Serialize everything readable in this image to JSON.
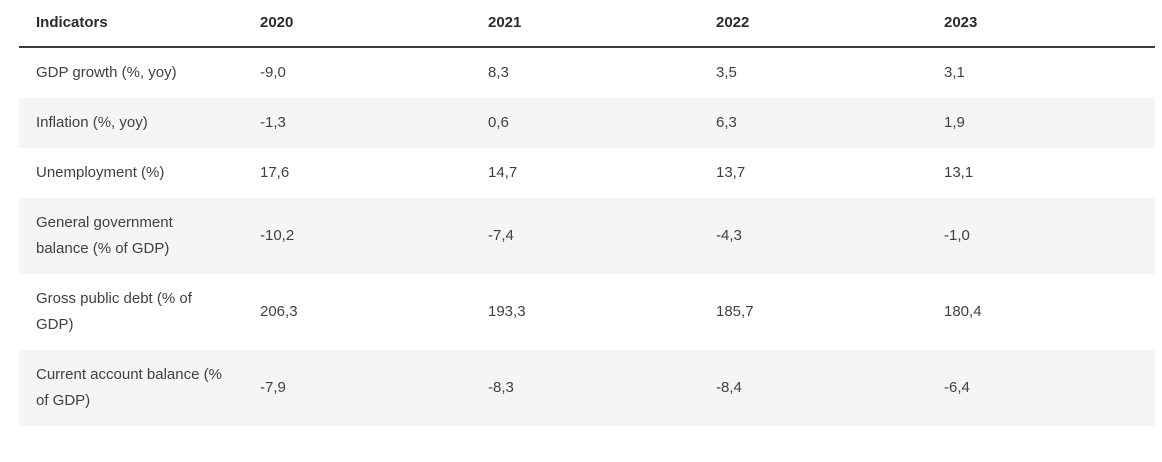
{
  "colors": {
    "page_bg": "#ffffff",
    "stripe_bg": "#f5f5f5",
    "header_border": "#3a3a3a",
    "header_text": "#2b2b2b",
    "text": "#404040"
  },
  "table": {
    "columns": [
      "Indicators",
      "2020",
      "2021",
      "2022",
      "2023"
    ],
    "rows": [
      {
        "indicator": "GDP growth (%, yoy)",
        "values": [
          "-9,0",
          "8,3",
          "3,5",
          "3,1"
        ]
      },
      {
        "indicator": "Inflation (%, yoy)",
        "values": [
          "-1,3",
          "0,6",
          "6,3",
          "1,9"
        ]
      },
      {
        "indicator": "Unemployment (%)",
        "values": [
          "17,6",
          "14,7",
          "13,7",
          "13,1"
        ]
      },
      {
        "indicator": "General government balance (% of GDP)",
        "values": [
          "-10,2",
          "-7,4",
          "-4,3",
          "-1,0"
        ]
      },
      {
        "indicator": "Gross public debt (% of GDP)",
        "values": [
          "206,3",
          "193,3",
          "185,7",
          "180,4"
        ]
      },
      {
        "indicator": "Current account balance (% of GDP)",
        "values": [
          "-7,9",
          "-8,3",
          "-8,4",
          "-6,4"
        ]
      }
    ]
  },
  "chart_data": {
    "type": "table",
    "columns": [
      "Indicators",
      "2020",
      "2021",
      "2022",
      "2023"
    ],
    "rows": [
      [
        "GDP growth (%, yoy)",
        -9.0,
        8.3,
        3.5,
        3.1
      ],
      [
        "Inflation (%, yoy)",
        -1.3,
        0.6,
        6.3,
        1.9
      ],
      [
        "Unemployment (%)",
        17.6,
        14.7,
        13.7,
        13.1
      ],
      [
        "General government balance (% of GDP)",
        -10.2,
        -7.4,
        -4.3,
        -1.0
      ],
      [
        "Gross public debt (% of GDP)",
        206.3,
        193.3,
        185.7,
        180.4
      ],
      [
        "Current account balance (% of GDP)",
        -7.9,
        -8.3,
        -8.4,
        -6.4
      ]
    ],
    "decimal_separator": ",",
    "layout": {
      "striped_rows": true,
      "header_underline": true,
      "grid": false
    }
  }
}
